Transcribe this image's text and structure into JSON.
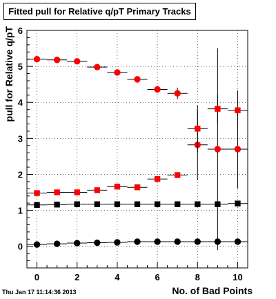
{
  "title": "Fitted pull for Relative q/pT Primary Tracks",
  "timestamp": "Thu Jan 17 11:14:36 2013",
  "chart_data": {
    "type": "scatter",
    "xlabel": "No. of Bad Points",
    "ylabel": "pull for Relative q/pT",
    "xlim": [
      -0.5,
      10.5
    ],
    "ylim": [
      -0.6,
      6.0
    ],
    "xticks": [
      0,
      2,
      4,
      6,
      8,
      10
    ],
    "yticks": [
      0,
      1,
      2,
      3,
      4,
      5,
      6
    ],
    "grid": true,
    "x": [
      0,
      1,
      2,
      3,
      4,
      5,
      6,
      7,
      8,
      9,
      10
    ],
    "series": [
      {
        "marker": "circle",
        "color": "#ff0000",
        "values": [
          5.2,
          5.18,
          5.14,
          4.98,
          4.83,
          4.64,
          4.36,
          4.25,
          2.82,
          2.7,
          2.7
        ],
        "errors": [
          0.04,
          0.04,
          0.05,
          0.05,
          0.06,
          0.06,
          0.07,
          0.16,
          0.98,
          2.8,
          1.1
        ]
      },
      {
        "marker": "square",
        "color": "#ff0000",
        "values": [
          1.48,
          1.5,
          1.5,
          1.56,
          1.66,
          1.64,
          1.87,
          1.98,
          3.27,
          3.82,
          3.78
        ],
        "errors": [
          0.02,
          0.02,
          0.02,
          0.03,
          0.04,
          0.04,
          0.05,
          0.08,
          0.65,
          0.4,
          0.55
        ]
      },
      {
        "marker": "square",
        "color": "#000000",
        "values": [
          1.15,
          1.16,
          1.17,
          1.17,
          1.17,
          1.17,
          1.17,
          1.17,
          1.17,
          1.17,
          1.19
        ],
        "errors": [
          0.01,
          0.01,
          0.01,
          0.01,
          0.01,
          0.01,
          0.01,
          0.01,
          0.02,
          0.02,
          0.03
        ]
      },
      {
        "marker": "circle",
        "color": "#000000",
        "values": [
          0.05,
          0.07,
          0.09,
          0.1,
          0.11,
          0.13,
          0.13,
          0.13,
          0.13,
          0.13,
          0.13
        ],
        "errors": [
          0.01,
          0.01,
          0.01,
          0.01,
          0.01,
          0.01,
          0.01,
          0.01,
          0.02,
          0.02,
          0.02
        ]
      }
    ]
  }
}
